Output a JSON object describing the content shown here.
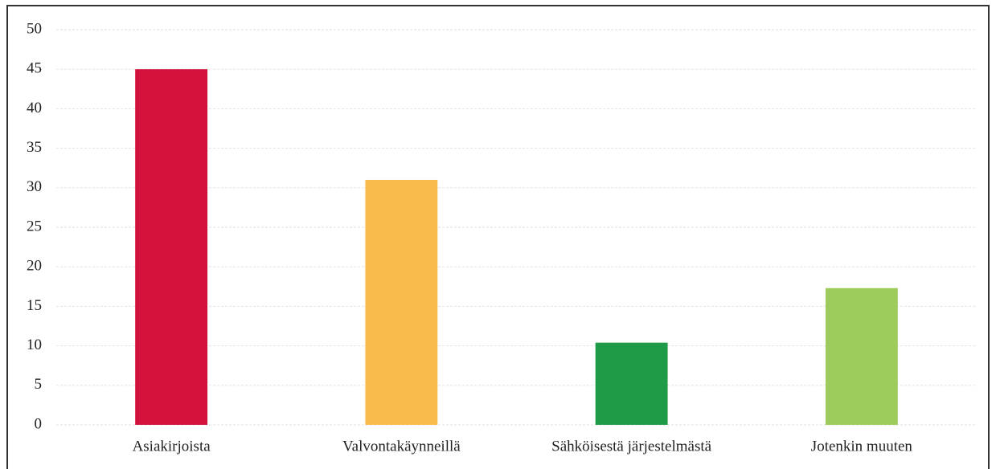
{
  "chart_data": {
    "type": "bar",
    "categories": [
      "Asiakirjoista",
      "Valvontakäynneillä",
      "Sähköisestä järjestelmästä",
      "Jotenkin muuten"
    ],
    "values": [
      45,
      31,
      10.4,
      17.3
    ],
    "colors": [
      "#d3123c",
      "#f9bb4c",
      "#1f9b47",
      "#9dcb5c"
    ],
    "ylim": [
      0,
      50
    ],
    "yticks": [
      0,
      5,
      10,
      15,
      20,
      25,
      30,
      35,
      40,
      45,
      50
    ],
    "grid": true
  }
}
